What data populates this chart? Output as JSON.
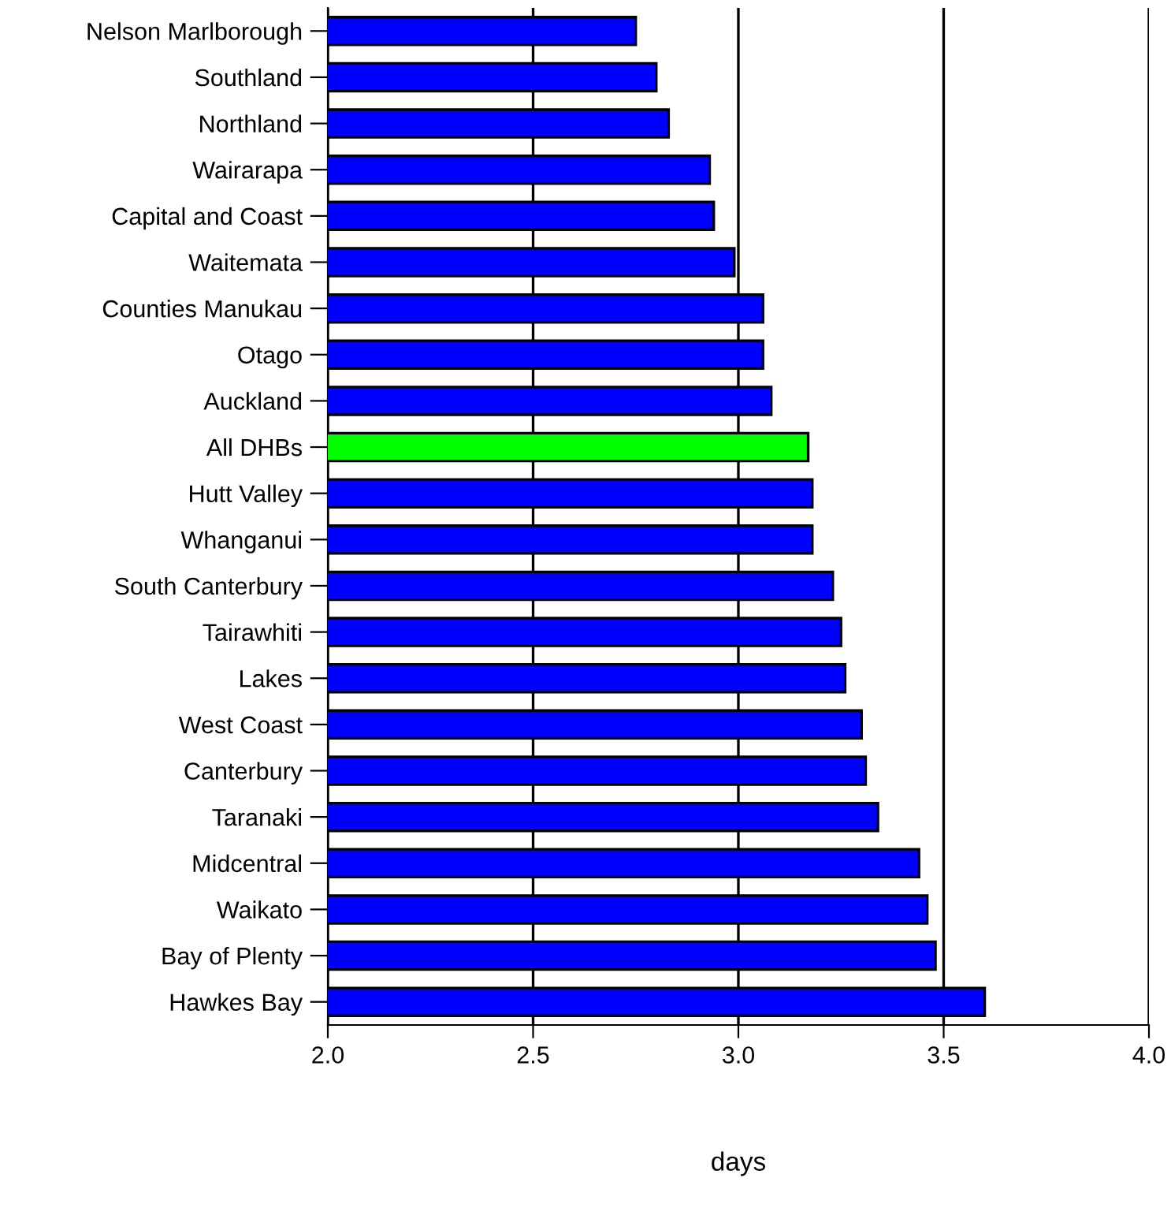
{
  "chart_data": {
    "type": "bar",
    "orientation": "horizontal",
    "xlabel": "days",
    "categories": [
      "Nelson Marlborough",
      "Southland",
      "Northland",
      "Wairarapa",
      "Capital and Coast",
      "Waitemata",
      "Counties Manukau",
      "Otago",
      "Auckland",
      "All DHBs",
      "Hutt Valley",
      "Whanganui",
      "South Canterbury",
      "Tairawhiti",
      "Lakes",
      "West Coast",
      "Canterbury",
      "Taranaki",
      "Midcentral",
      "Waikato",
      "Bay of Plenty",
      "Hawkes Bay"
    ],
    "values": [
      2.75,
      2.8,
      2.83,
      2.93,
      2.94,
      2.99,
      3.06,
      3.06,
      3.08,
      3.17,
      3.18,
      3.18,
      3.23,
      3.25,
      3.26,
      3.3,
      3.31,
      3.34,
      3.44,
      3.46,
      3.48,
      3.6
    ],
    "colors": [
      "#0000ff",
      "#0000ff",
      "#0000ff",
      "#0000ff",
      "#0000ff",
      "#0000ff",
      "#0000ff",
      "#0000ff",
      "#0000ff",
      "#00ff00",
      "#0000ff",
      "#0000ff",
      "#0000ff",
      "#0000ff",
      "#0000ff",
      "#0000ff",
      "#0000ff",
      "#0000ff",
      "#0000ff",
      "#0000ff",
      "#0000ff",
      "#0000ff"
    ],
    "xlim": [
      2.0,
      4.0
    ],
    "xticks": [
      {
        "value": 2.0,
        "label": "2.0"
      },
      {
        "value": 2.5,
        "label": "2.5"
      },
      {
        "value": 3.0,
        "label": "3.0"
      },
      {
        "value": 3.5,
        "label": "3.5"
      },
      {
        "value": 4.0,
        "label": "4.0"
      }
    ],
    "grid": "x"
  }
}
